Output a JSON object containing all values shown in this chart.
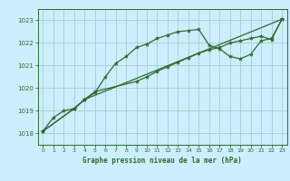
{
  "background_color": "#cceeff",
  "grid_color": "#aacccc",
  "line_color": "#2d6a2d",
  "title": "Graphe pression niveau de la mer (hPa)",
  "xlim": [
    -0.5,
    23.5
  ],
  "ylim": [
    1017.5,
    1023.5
  ],
  "yticks": [
    1018,
    1019,
    1020,
    1021,
    1022,
    1023
  ],
  "xticks": [
    0,
    1,
    2,
    3,
    4,
    5,
    6,
    7,
    8,
    9,
    10,
    11,
    12,
    13,
    14,
    15,
    16,
    17,
    18,
    19,
    20,
    21,
    22,
    23
  ],
  "series1_x": [
    0,
    1,
    2,
    3,
    4,
    5,
    6,
    7,
    8,
    9,
    10,
    11,
    12,
    13,
    14,
    15,
    16,
    17,
    18,
    19,
    20,
    21,
    22,
    23
  ],
  "series1_y": [
    1018.1,
    1018.7,
    1019.0,
    1019.1,
    1019.5,
    1019.8,
    1020.5,
    1021.1,
    1021.4,
    1021.8,
    1021.95,
    1022.2,
    1022.35,
    1022.5,
    1022.55,
    1022.6,
    1021.9,
    1021.75,
    1021.4,
    1021.3,
    1021.5,
    1022.1,
    1022.2,
    1023.05
  ],
  "series2_x": [
    0,
    3,
    4,
    23
  ],
  "series2_y": [
    1018.1,
    1019.1,
    1019.5,
    1023.05
  ],
  "series3_x": [
    0,
    3,
    4,
    5,
    9,
    10,
    11,
    12,
    13,
    14,
    15,
    16,
    17,
    18,
    19,
    20,
    21,
    22,
    23
  ],
  "series3_y": [
    1018.1,
    1019.1,
    1019.5,
    1019.85,
    1020.3,
    1020.5,
    1020.75,
    1020.95,
    1021.15,
    1021.35,
    1021.55,
    1021.7,
    1021.8,
    1022.0,
    1022.1,
    1022.2,
    1022.3,
    1022.15,
    1023.05
  ]
}
